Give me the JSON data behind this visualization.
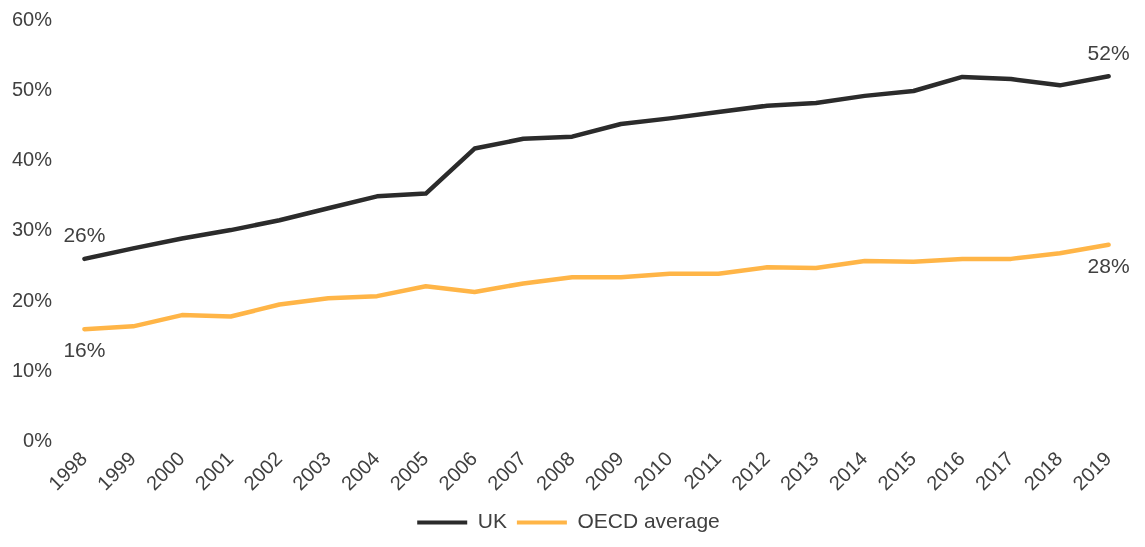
{
  "chart_data": {
    "type": "line",
    "categories": [
      "1998",
      "1999",
      "2000",
      "2001",
      "2002",
      "2003",
      "2004",
      "2005",
      "2006",
      "2007",
      "2008",
      "2009",
      "2010",
      "2011",
      "2012",
      "2013",
      "2014",
      "2015",
      "2016",
      "2017",
      "2018",
      "2019"
    ],
    "series": [
      {
        "name": "UK",
        "color": "#2b2b2b",
        "values": [
          26,
          27.5,
          28.9,
          30.1,
          31.5,
          33.2,
          34.9,
          35.3,
          41.7,
          43.1,
          43.4,
          45.2,
          46.0,
          46.9,
          47.8,
          48.2,
          49.2,
          49.9,
          51.9,
          51.6,
          50.7,
          52
        ],
        "value_labels": [
          "26%",
          null,
          null,
          null,
          null,
          null,
          null,
          null,
          null,
          null,
          null,
          null,
          null,
          null,
          null,
          null,
          null,
          null,
          null,
          null,
          null,
          "52%"
        ]
      },
      {
        "name": "OECD average",
        "color": "#ffb547",
        "values": [
          16,
          16.4,
          18.0,
          17.8,
          19.5,
          20.4,
          20.7,
          22.1,
          21.3,
          22.5,
          23.4,
          23.4,
          23.9,
          23.9,
          24.8,
          24.7,
          25.7,
          25.6,
          26.0,
          26.0,
          26.8,
          28
        ],
        "value_labels": [
          "16%",
          null,
          null,
          null,
          null,
          null,
          null,
          null,
          null,
          null,
          null,
          null,
          null,
          null,
          null,
          null,
          null,
          null,
          null,
          null,
          null,
          "28%"
        ]
      }
    ],
    "ylim": [
      0,
      60
    ],
    "yticks": [
      {
        "value": 0,
        "label": "0%"
      },
      {
        "value": 10,
        "label": "10%"
      },
      {
        "value": 20,
        "label": "20%"
      },
      {
        "value": 30,
        "label": "30%"
      },
      {
        "value": 40,
        "label": "40%"
      },
      {
        "value": 50,
        "label": "50%"
      },
      {
        "value": 60,
        "label": "60%"
      }
    ],
    "grid": false,
    "legend": "bottom",
    "marker": "none",
    "line_style": "solid"
  }
}
